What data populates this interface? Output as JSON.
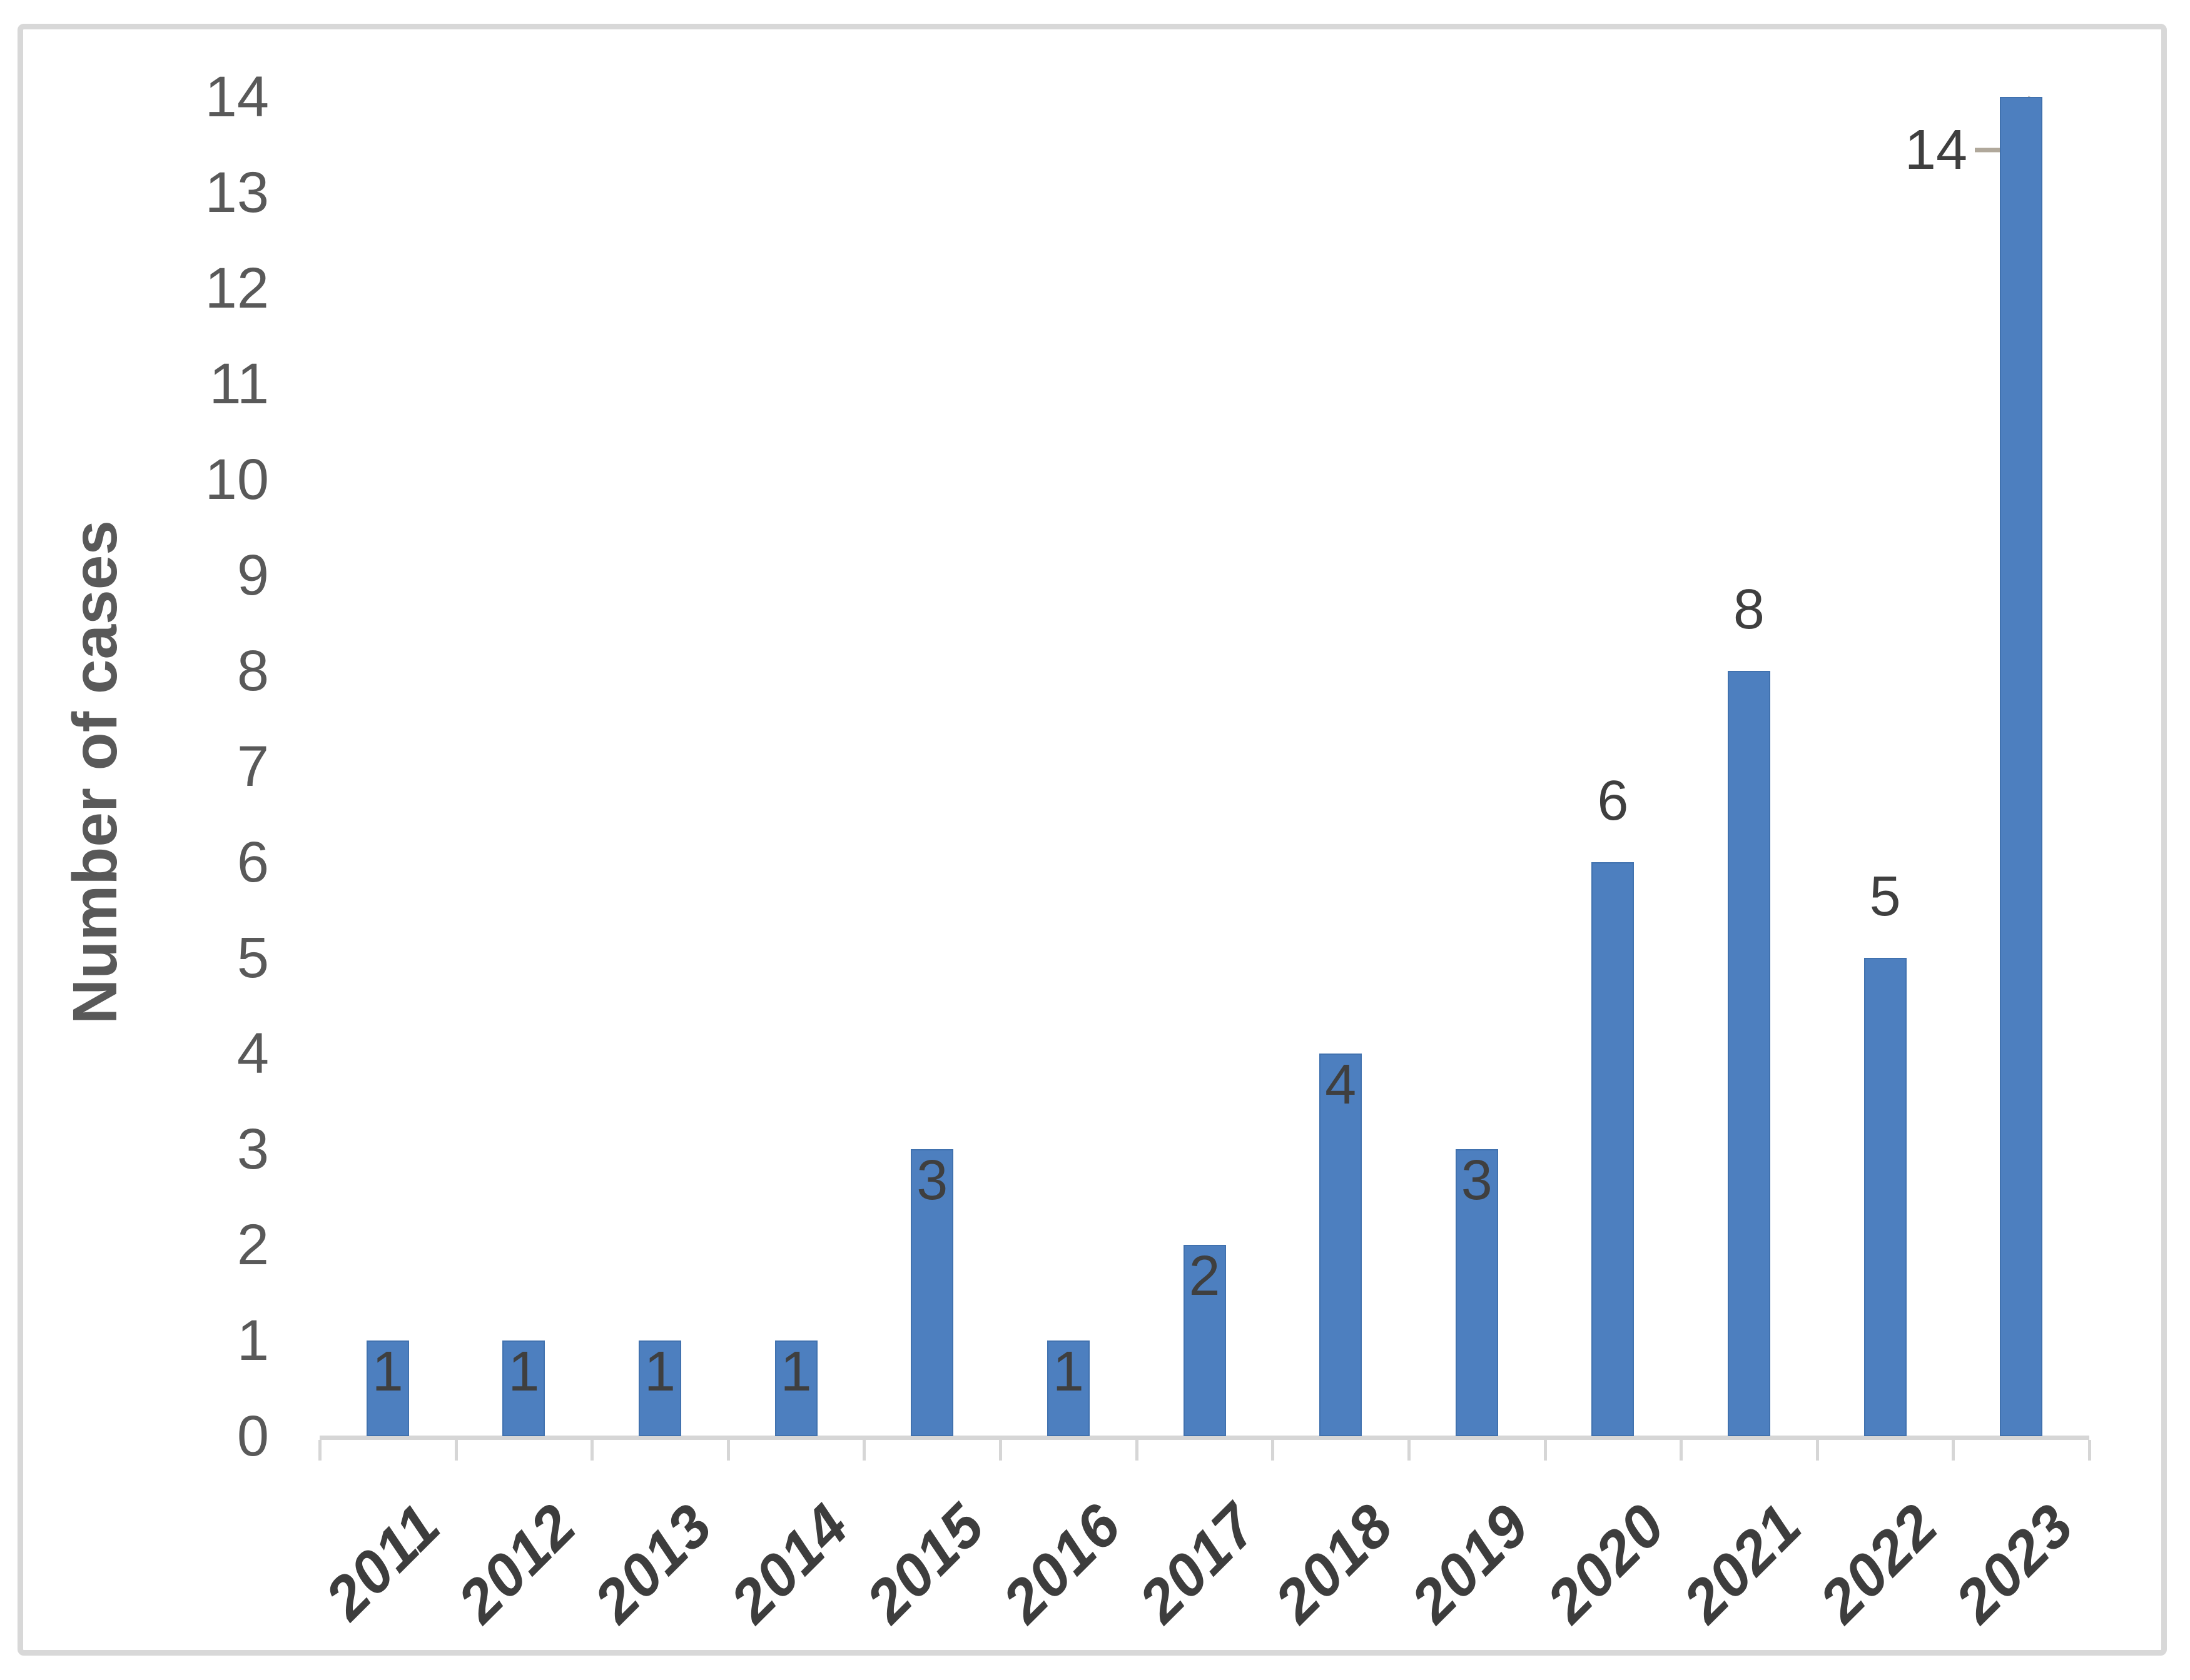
{
  "figure": {
    "background": "#ffffff",
    "border_color": "#d8d8d8"
  },
  "chart_data": {
    "type": "bar",
    "title": "",
    "categories": [
      "2011",
      "2012",
      "2013",
      "2014",
      "2015",
      "2016",
      "2017",
      "2018",
      "2019",
      "2020",
      "2021",
      "2022",
      "2023"
    ],
    "values": [
      1,
      1,
      1,
      1,
      3,
      1,
      2,
      4,
      3,
      6,
      8,
      5,
      14
    ],
    "data_labels": [
      "1",
      "1",
      "1",
      "1",
      "3",
      "1",
      "2",
      "4",
      "3",
      "6",
      "8",
      "5",
      "14"
    ],
    "data_label_placement": [
      "inside",
      "inside",
      "inside",
      "inside",
      "inside",
      "inside",
      "inside",
      "inside",
      "inside",
      "outside",
      "outside",
      "outside",
      "callout"
    ],
    "callout": {
      "category": "2023",
      "label": "14"
    },
    "xlabel": "",
    "ylabel": "Number of cases",
    "ylim": [
      0,
      14
    ],
    "yticks": [
      "0",
      "1",
      "2",
      "3",
      "4",
      "5",
      "6",
      "7",
      "8",
      "9",
      "10",
      "11",
      "12",
      "13",
      "14"
    ],
    "grid": false,
    "legend": null,
    "x_tick_rotation_deg": 45,
    "colors": {
      "bar": "#4d7fbf",
      "y_tick_label": "#595959",
      "x_tick_label": "#3d3d3d",
      "data_label": "#3f3f3f",
      "axis_line": "#d6d6d6",
      "leader_line": "#b0a89b",
      "axis_title": "#595959"
    }
  }
}
